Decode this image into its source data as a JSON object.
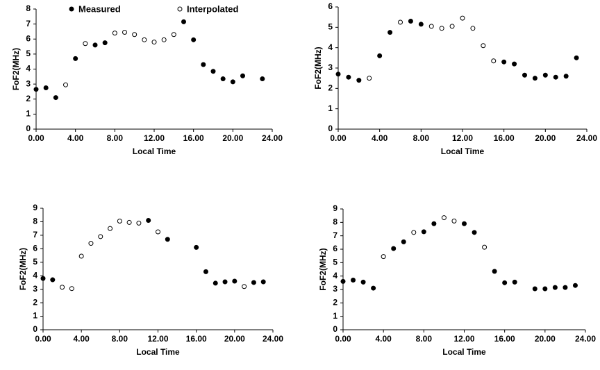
{
  "chart_data": [
    {
      "type": "scatter",
      "xlabel": "Local Time",
      "ylabel": "FoF2(MHz)",
      "legend": "top",
      "xlim": [
        0,
        24
      ],
      "ylim": [
        0,
        8
      ],
      "xticks": [
        {
          "value": 0,
          "label": "0.00"
        },
        {
          "value": 4,
          "label": "4.00"
        },
        {
          "value": 8,
          "label": "8.00"
        },
        {
          "value": 12,
          "label": "12.00"
        },
        {
          "value": 16,
          "label": "16.00"
        },
        {
          "value": 20,
          "label": "20.00"
        },
        {
          "value": 24,
          "label": "24.00"
        }
      ],
      "yticks": [
        0,
        1,
        2,
        3,
        4,
        5,
        6,
        7,
        8
      ],
      "series": [
        {
          "name": "Measured",
          "color": "#000000",
          "fill": "#000000",
          "x": [
            0,
            1,
            2,
            4,
            6,
            7,
            15,
            16,
            17,
            18,
            19,
            20,
            21,
            23
          ],
          "values": [
            2.65,
            2.75,
            2.1,
            4.7,
            5.6,
            5.75,
            7.15,
            5.95,
            4.3,
            3.85,
            3.35,
            3.15,
            3.55,
            3.35
          ]
        },
        {
          "name": "Interpolated",
          "color": "#000000",
          "fill": "#ffffff",
          "x": [
            3,
            5,
            8,
            9,
            10,
            11,
            12,
            13,
            14
          ],
          "values": [
            2.95,
            5.7,
            6.4,
            6.45,
            6.3,
            5.95,
            5.8,
            5.95,
            6.3
          ]
        }
      ]
    },
    {
      "type": "scatter",
      "xlabel": "Local Time",
      "ylabel": "FoF2(MHz)",
      "xlim": [
        0,
        24
      ],
      "ylim": [
        0,
        6
      ],
      "xticks": [
        {
          "value": 0,
          "label": "0.00"
        },
        {
          "value": 4,
          "label": "4.00"
        },
        {
          "value": 8,
          "label": "8.00"
        },
        {
          "value": 12,
          "label": "12.00"
        },
        {
          "value": 16,
          "label": "16.00"
        },
        {
          "value": 20,
          "label": "20.00"
        },
        {
          "value": 24,
          "label": "24.00"
        }
      ],
      "yticks": [
        0,
        1,
        2,
        3,
        4,
        5,
        6
      ],
      "series": [
        {
          "color": "#000000",
          "fill": "#000000",
          "x": [
            0,
            1,
            2,
            4,
            5,
            7,
            8,
            16,
            17,
            18,
            19,
            20,
            21,
            22,
            23
          ],
          "values": [
            2.7,
            2.55,
            2.4,
            3.6,
            4.75,
            5.3,
            5.15,
            3.3,
            3.2,
            2.65,
            2.5,
            2.65,
            2.55,
            2.6,
            3.5
          ]
        },
        {
          "color": "#000000",
          "fill": "#ffffff",
          "x": [
            3,
            6,
            9,
            10,
            11,
            12,
            13,
            14,
            15
          ],
          "values": [
            2.5,
            5.25,
            5.05,
            4.95,
            5.05,
            5.45,
            4.95,
            4.1,
            3.35
          ]
        }
      ]
    },
    {
      "type": "scatter",
      "xlabel": "Local Time",
      "ylabel": "FoF2(MHz)",
      "xlim": [
        0,
        24
      ],
      "ylim": [
        0,
        9
      ],
      "xticks": [
        {
          "value": 0,
          "label": "0.00"
        },
        {
          "value": 4,
          "label": "4.00"
        },
        {
          "value": 8,
          "label": "8.00"
        },
        {
          "value": 12,
          "label": "12.00"
        },
        {
          "value": 16,
          "label": "16.00"
        },
        {
          "value": 20,
          "label": "20.00"
        },
        {
          "value": 24,
          "label": "24.00"
        }
      ],
      "yticks": [
        0,
        1,
        2,
        3,
        4,
        5,
        6,
        7,
        8,
        9
      ],
      "series": [
        {
          "color": "#000000",
          "fill": "#000000",
          "x": [
            0,
            1,
            11,
            13,
            16,
            17,
            18,
            19,
            20,
            22,
            23
          ],
          "values": [
            3.8,
            3.7,
            8.1,
            6.7,
            6.1,
            4.3,
            3.45,
            3.55,
            3.6,
            3.5,
            3.55
          ]
        },
        {
          "color": "#000000",
          "fill": "#ffffff",
          "x": [
            2,
            3,
            4,
            5,
            6,
            7,
            8,
            9,
            10,
            12,
            21
          ],
          "values": [
            3.15,
            3.05,
            5.45,
            6.4,
            6.9,
            7.5,
            8.05,
            7.95,
            7.9,
            7.25,
            3.2
          ]
        }
      ]
    },
    {
      "type": "scatter",
      "xlabel": "Local Time",
      "ylabel": "FoF2(MHz)",
      "xlim": [
        0,
        24
      ],
      "ylim": [
        0,
        9
      ],
      "xticks": [
        {
          "value": 0,
          "label": "0.00"
        },
        {
          "value": 4,
          "label": "4.00"
        },
        {
          "value": 8,
          "label": "8.00"
        },
        {
          "value": 12,
          "label": "12.00"
        },
        {
          "value": 16,
          "label": "16.00"
        },
        {
          "value": 20,
          "label": "20.00"
        },
        {
          "value": 24,
          "label": "24.00"
        }
      ],
      "yticks": [
        0,
        1,
        2,
        3,
        4,
        5,
        6,
        7,
        8,
        9
      ],
      "series": [
        {
          "color": "#000000",
          "fill": "#000000",
          "x": [
            0,
            1,
            2,
            3,
            5,
            6,
            8,
            9,
            12,
            13,
            15,
            16,
            17,
            19,
            20,
            21,
            22,
            23
          ],
          "values": [
            3.6,
            3.7,
            3.55,
            3.1,
            6.05,
            6.55,
            7.3,
            7.9,
            7.9,
            7.25,
            4.35,
            3.5,
            3.55,
            3.05,
            3.05,
            3.15,
            3.15,
            3.3
          ]
        },
        {
          "color": "#000000",
          "fill": "#ffffff",
          "x": [
            4,
            7,
            10,
            11,
            14
          ],
          "values": [
            5.45,
            7.25,
            8.35,
            8.1,
            6.15
          ]
        }
      ]
    }
  ]
}
